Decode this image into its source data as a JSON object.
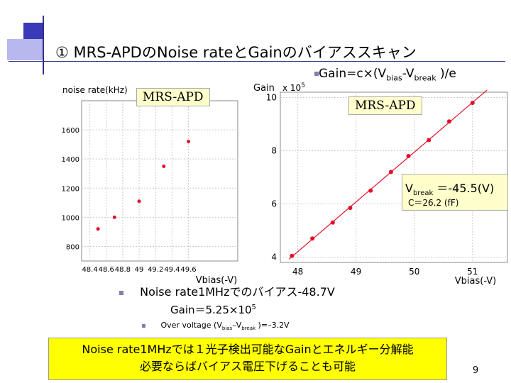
{
  "title": "① MRS-APDのNoise rateとGainのバイアススキャン",
  "formula": "Gain=c×(Vbias-Vbreak )/e",
  "formula_parts": {
    "pre": "Gain=c×(V",
    "sub1": "bias",
    "mid": "-V",
    "sub2": "break",
    "post": " )/e"
  },
  "vbreak_label": {
    "pre": "V",
    "sub": "break",
    "post": " ＝-45.5(V)"
  },
  "c_label": "C＝26.2 (fF)",
  "bullet1": "Noise rate1MHzでのバイアス-48.7V",
  "gain_line": {
    "pre": "Gain＝5.25×10",
    "sup": "5"
  },
  "overvoltage": {
    "pre": "Over voltage (V",
    "sub1": "bias",
    "mid": "–V",
    "sub2": "break",
    "post": " )=–3.2V"
  },
  "conclusion_line1": "Noise rate1MHzでは１光子検出可能なGainとエネルギー分解能",
  "conclusion_line2": "必要ならばバイアス電圧下げることも可能",
  "page_number": "9",
  "colors": {
    "accent_dark": "#3a3ab8",
    "accent_light": "#b8b8ee",
    "marker": "#e0102a",
    "highlight": "#ffff00",
    "note_bg": "#ffffcc"
  },
  "chart_data": [
    {
      "type": "scatter",
      "title": "",
      "annotation": "MRS-APD",
      "ylabel": "noise rate(kHz)",
      "xlabel": "Vbias(-V)",
      "xlim": [
        48.3,
        50.2
      ],
      "ylim": [
        700,
        1800
      ],
      "xticks": [
        48.4,
        48.6,
        48.8,
        49,
        49.2,
        49.4,
        49.6
      ],
      "yticks": [
        800,
        1000,
        1200,
        1400,
        1600
      ],
      "x": [
        48.5,
        48.7,
        49.0,
        49.3,
        49.6
      ],
      "y": [
        920,
        1000,
        1110,
        1350,
        1520
      ],
      "grid": true
    },
    {
      "type": "line",
      "title": "",
      "annotation": "MRS-APD",
      "ylabel": "Gain",
      "ylabel_multiplier": "x 10^5",
      "ylabel_multiplier_parts": {
        "base": "x 10",
        "exp": "5"
      },
      "xlabel": "Vbias(-V)",
      "xlim": [
        47.7,
        51.6
      ],
      "ylim": [
        3.8,
        10.2
      ],
      "xticks": [
        48,
        49,
        50,
        51
      ],
      "yticks": [
        4,
        6,
        8,
        10
      ],
      "x": [
        47.9,
        48.25,
        48.6,
        48.9,
        49.25,
        49.6,
        49.9,
        50.25,
        50.6,
        51.0
      ],
      "y": [
        4.05,
        4.7,
        5.3,
        5.85,
        6.5,
        7.2,
        7.8,
        8.4,
        9.1,
        9.8
      ],
      "fit": true,
      "grid": true
    }
  ]
}
